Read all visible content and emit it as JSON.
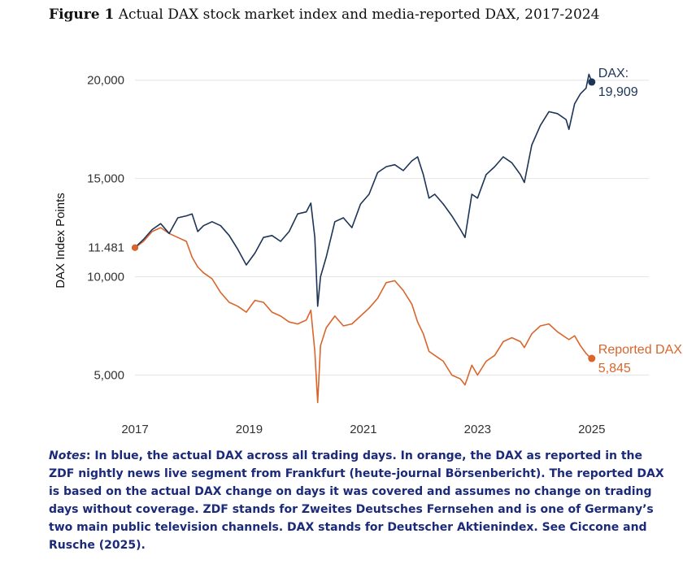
{
  "figure": {
    "label": "Figure 1",
    "caption": "Actual DAX stock market index and media-reported DAX, 2017-2024"
  },
  "notes": {
    "label": "Notes",
    "text": ": In blue, the actual DAX across all trading days. In orange, the DAX as reported in the ZDF nightly news live segment from Frankfurt (heute-journal Börsenbericht). The reported DAX is based on the actual DAX change on days it was covered and assumes no change on trading days without coverage. ZDF stands for Zweites Deutsches Fernsehen and is one of Germany’s two main public television channels. DAX stands for Deutscher Aktienindex. See Ciccone and Rusche (2025)."
  },
  "chart_data": {
    "type": "line",
    "ylabel": "DAX Index Points",
    "xlabel": "",
    "xlim": [
      2017.0,
      2026.0
    ],
    "ylim": [
      3200,
      21600
    ],
    "x_ticks": [
      2017,
      2019,
      2021,
      2023,
      2025
    ],
    "x_tick_labels": [
      "2017",
      "2019",
      "2021",
      "2023",
      "2025"
    ],
    "y_ticks": [
      5000,
      10000,
      11481,
      15000,
      20000
    ],
    "y_tick_labels": [
      "5,000",
      "10,000",
      "11.481",
      "15,000",
      "20,000"
    ],
    "grid": true,
    "colors": {
      "actual": "#1c3557",
      "reported": "#d9652b"
    },
    "series": [
      {
        "key": "actual",
        "end_label_name": "DAX:",
        "end_label_value": "19,909",
        "x": [
          2017.0,
          2017.15,
          2017.3,
          2017.45,
          2017.6,
          2017.75,
          2017.9,
          2018.0,
          2018.1,
          2018.2,
          2018.35,
          2018.5,
          2018.65,
          2018.8,
          2018.95,
          2019.1,
          2019.25,
          2019.4,
          2019.55,
          2019.7,
          2019.85,
          2020.0,
          2020.08,
          2020.15,
          2020.2,
          2020.25,
          2020.35,
          2020.5,
          2020.65,
          2020.8,
          2020.95,
          2021.1,
          2021.25,
          2021.4,
          2021.55,
          2021.7,
          2021.85,
          2021.95,
          2022.05,
          2022.15,
          2022.25,
          2022.4,
          2022.55,
          2022.7,
          2022.78,
          2022.9,
          2023.0,
          2023.15,
          2023.3,
          2023.45,
          2023.6,
          2023.75,
          2023.82,
          2023.95,
          2024.1,
          2024.25,
          2024.4,
          2024.55,
          2024.6,
          2024.7,
          2024.8,
          2024.9,
          2024.95,
          2025.0
        ],
        "y": [
          11481,
          11900,
          12400,
          12700,
          12200,
          13000,
          13100,
          13200,
          12300,
          12600,
          12800,
          12600,
          12100,
          11400,
          10600,
          11200,
          12000,
          12100,
          11800,
          12300,
          13200,
          13300,
          13750,
          12000,
          8500,
          10000,
          11000,
          12800,
          13000,
          12500,
          13700,
          14200,
          15300,
          15600,
          15700,
          15400,
          15900,
          16100,
          15200,
          14000,
          14200,
          13700,
          13100,
          12400,
          12000,
          14200,
          14000,
          15200,
          15600,
          16100,
          15800,
          15200,
          14800,
          16700,
          17700,
          18400,
          18300,
          18000,
          17500,
          18800,
          19300,
          19600,
          20300,
          19909
        ]
      },
      {
        "key": "reported",
        "end_label_name": "Reported DAX:",
        "end_label_value": "5,845",
        "x": [
          2017.0,
          2017.15,
          2017.3,
          2017.45,
          2017.6,
          2017.75,
          2017.9,
          2018.0,
          2018.1,
          2018.2,
          2018.35,
          2018.5,
          2018.65,
          2018.8,
          2018.95,
          2019.1,
          2019.25,
          2019.4,
          2019.55,
          2019.7,
          2019.85,
          2020.0,
          2020.08,
          2020.15,
          2020.2,
          2020.25,
          2020.35,
          2020.5,
          2020.65,
          2020.8,
          2020.95,
          2021.1,
          2021.25,
          2021.4,
          2021.55,
          2021.7,
          2021.85,
          2021.95,
          2022.05,
          2022.15,
          2022.25,
          2022.4,
          2022.55,
          2022.7,
          2022.78,
          2022.9,
          2023.0,
          2023.15,
          2023.3,
          2023.45,
          2023.6,
          2023.75,
          2023.82,
          2023.95,
          2024.1,
          2024.25,
          2024.4,
          2024.55,
          2024.6,
          2024.7,
          2024.8,
          2024.9,
          2024.95,
          2025.0
        ],
        "y": [
          11481,
          11800,
          12300,
          12500,
          12200,
          12000,
          11800,
          11000,
          10500,
          10200,
          9900,
          9200,
          8700,
          8500,
          8200,
          8800,
          8700,
          8200,
          8000,
          7700,
          7600,
          7800,
          8300,
          6200,
          3600,
          6500,
          7400,
          8000,
          7500,
          7600,
          8000,
          8400,
          8900,
          9700,
          9800,
          9300,
          8600,
          7700,
          7100,
          6200,
          6000,
          5700,
          5000,
          4800,
          4500,
          5500,
          5000,
          5700,
          6000,
          6700,
          6900,
          6700,
          6400,
          7100,
          7500,
          7600,
          7200,
          6900,
          6800,
          7000,
          6500,
          6100,
          5950,
          5845
        ]
      }
    ]
  }
}
